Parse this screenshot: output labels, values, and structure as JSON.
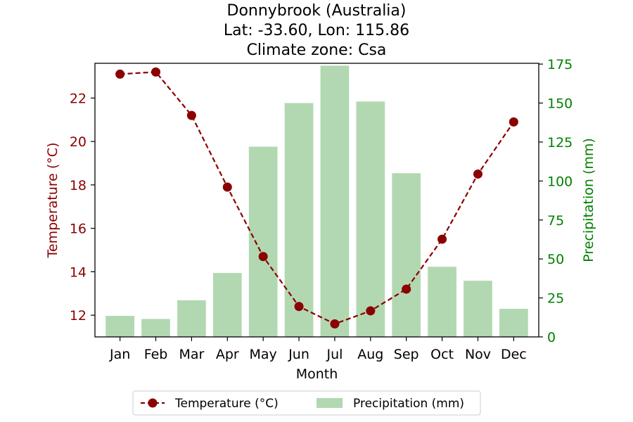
{
  "chart_data": {
    "type": "bar+line",
    "title_lines": [
      "Donnybrook (Australia)",
      "Lat: -33.60, Lon: 115.86",
      "Climate zone: Csa"
    ],
    "xlabel": "Month",
    "categories": [
      "Jan",
      "Feb",
      "Mar",
      "Apr",
      "May",
      "Jun",
      "Jul",
      "Aug",
      "Sep",
      "Oct",
      "Nov",
      "Dec"
    ],
    "temperature": {
      "name": "Temperature (°C)",
      "axis_label": "Temperature (°C)",
      "color": "#8b0000",
      "values": [
        23.1,
        23.2,
        21.2,
        17.9,
        14.7,
        12.4,
        11.6,
        12.2,
        13.2,
        15.5,
        18.5,
        20.9
      ],
      "ylim": [
        11.0,
        23.6
      ],
      "ticks": [
        12,
        14,
        16,
        18,
        20,
        22
      ]
    },
    "precipitation": {
      "name": "Precipitation (mm)",
      "axis_label": "Precipitation (mm)",
      "color": "#b2d8b2",
      "axis_color": "#008000",
      "values": [
        13.5,
        11.5,
        23.5,
        41,
        122,
        150,
        174,
        151,
        105,
        45,
        36,
        18
      ],
      "ylim": [
        0,
        175.5
      ],
      "ticks": [
        0,
        25,
        50,
        75,
        100,
        125,
        150,
        175
      ]
    },
    "legend": {
      "placement": "bottom-center"
    },
    "grid": false
  }
}
